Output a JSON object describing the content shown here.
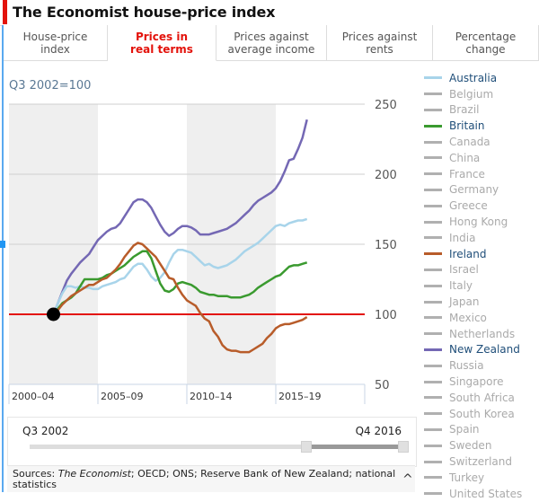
{
  "header": {
    "title": "The Economist house-price index",
    "accent_color": "#e3120b"
  },
  "tabs": [
    {
      "label_line1": "House-price",
      "label_line2": "index",
      "active": false
    },
    {
      "label_line1": "Prices in",
      "label_line2": "real terms",
      "active": true
    },
    {
      "label_line1": "Prices against",
      "label_line2": "average income",
      "active": false
    },
    {
      "label_line1": "Prices against",
      "label_line2": "rents",
      "active": false
    },
    {
      "label_line1": "Percentage",
      "label_line2": "change",
      "active": false
    }
  ],
  "legend": [
    {
      "label": "Australia",
      "active": true,
      "color": "#a8d4ea"
    },
    {
      "label": "Belgium",
      "active": false
    },
    {
      "label": "Brazil",
      "active": false
    },
    {
      "label": "Britain",
      "active": true,
      "color": "#3a9a2f"
    },
    {
      "label": "Canada",
      "active": false
    },
    {
      "label": "China",
      "active": false
    },
    {
      "label": "France",
      "active": false
    },
    {
      "label": "Germany",
      "active": false
    },
    {
      "label": "Greece",
      "active": false
    },
    {
      "label": "Hong Kong",
      "active": false
    },
    {
      "label": "India",
      "active": false
    },
    {
      "label": "Ireland",
      "active": true,
      "color": "#b85c2a"
    },
    {
      "label": "Israel",
      "active": false
    },
    {
      "label": "Italy",
      "active": false
    },
    {
      "label": "Japan",
      "active": false
    },
    {
      "label": "Mexico",
      "active": false
    },
    {
      "label": "Netherlands",
      "active": false
    },
    {
      "label": "New Zealand",
      "active": true,
      "color": "#7468b4"
    },
    {
      "label": "Russia",
      "active": false
    },
    {
      "label": "Singapore",
      "active": false
    },
    {
      "label": "South Africa",
      "active": false
    },
    {
      "label": "South Korea",
      "active": false
    },
    {
      "label": "Spain",
      "active": false
    },
    {
      "label": "Sweden",
      "active": false
    },
    {
      "label": "Switzerland",
      "active": false
    },
    {
      "label": "Turkey",
      "active": false
    },
    {
      "label": "United States",
      "active": false
    }
  ],
  "slider": {
    "start_label": "Q3 2002",
    "end_label": "Q4 2016",
    "range_start_fraction": 0.74,
    "range_end_fraction": 1.0
  },
  "sources": {
    "prefix": "Sources: ",
    "italic": "The Economist",
    "rest": "; OECD; ONS; Reserve Bank of New Zealand; national statistics",
    "toggle_icon": "^"
  },
  "chart_data": {
    "type": "line",
    "title": "The Economist house-price index — Prices in real terms",
    "subtitle": "Q3 2002=100",
    "xlabel": "",
    "ylabel": "",
    "ylim": [
      50,
      250
    ],
    "xlim": [
      2000,
      2020
    ],
    "yticks": [
      50,
      100,
      150,
      200,
      250
    ],
    "yaxis_position": "right",
    "grid": true,
    "period_bands": [
      {
        "label": "2000–04",
        "start": 2000,
        "end": 2005,
        "shaded": true
      },
      {
        "label": "2005–09",
        "start": 2005,
        "end": 2010,
        "shaded": false
      },
      {
        "label": "2010–14",
        "start": 2010,
        "end": 2015,
        "shaded": true
      },
      {
        "label": "2015–19",
        "start": 2015,
        "end": 2020,
        "shaded": false
      }
    ],
    "baseline": {
      "value": 100,
      "color": "#e3120b"
    },
    "base_point": {
      "x": 2002.5,
      "y": 100,
      "label": "Q3 2002"
    },
    "legend_position": "right",
    "series": [
      {
        "name": "New Zealand",
        "color": "#7468b4",
        "x": [
          2002.5,
          2002.75,
          2003,
          2003.25,
          2003.5,
          2003.75,
          2004,
          2004.25,
          2004.5,
          2004.75,
          2005,
          2005.25,
          2005.5,
          2005.75,
          2006,
          2006.25,
          2006.5,
          2006.75,
          2007,
          2007.25,
          2007.5,
          2007.75,
          2008,
          2008.25,
          2008.5,
          2008.75,
          2009,
          2009.25,
          2009.5,
          2009.75,
          2010,
          2010.25,
          2010.5,
          2010.75,
          2011,
          2011.25,
          2011.5,
          2011.75,
          2012,
          2012.25,
          2012.5,
          2012.75,
          2013,
          2013.25,
          2013.5,
          2013.75,
          2014,
          2014.25,
          2014.5,
          2014.75,
          2015,
          2015.25,
          2015.5,
          2015.75,
          2016,
          2016.25,
          2016.5,
          2016.75
        ],
        "values": [
          100,
          108,
          116,
          124,
          129,
          133,
          137,
          140,
          143,
          148,
          153,
          156,
          159,
          161,
          162,
          165,
          170,
          175,
          180,
          182,
          182,
          180,
          176,
          170,
          164,
          159,
          156,
          158,
          161,
          163,
          163,
          162,
          160,
          157,
          157,
          157,
          158,
          159,
          160,
          161,
          163,
          165,
          168,
          171,
          174,
          178,
          181,
          183,
          185,
          187,
          190,
          195,
          202,
          210,
          211,
          218,
          226,
          239
        ]
      },
      {
        "name": "Australia",
        "color": "#a8d4ea",
        "x": [
          2002.5,
          2002.75,
          2003,
          2003.25,
          2003.5,
          2003.75,
          2004,
          2004.25,
          2004.5,
          2004.75,
          2005,
          2005.25,
          2005.5,
          2005.75,
          2006,
          2006.25,
          2006.5,
          2006.75,
          2007,
          2007.25,
          2007.5,
          2007.75,
          2008,
          2008.25,
          2008.5,
          2008.75,
          2009,
          2009.25,
          2009.5,
          2009.75,
          2010,
          2010.25,
          2010.5,
          2010.75,
          2011,
          2011.25,
          2011.5,
          2011.75,
          2012,
          2012.25,
          2012.5,
          2012.75,
          2013,
          2013.25,
          2013.5,
          2013.75,
          2014,
          2014.25,
          2014.5,
          2014.75,
          2015,
          2015.25,
          2015.5,
          2015.75,
          2016,
          2016.25,
          2016.5,
          2016.75
        ],
        "values": [
          100,
          108,
          115,
          120,
          120,
          119,
          120,
          119,
          119,
          118,
          118,
          120,
          121,
          122,
          123,
          125,
          126,
          130,
          134,
          136,
          136,
          132,
          127,
          124,
          126,
          130,
          137,
          143,
          146,
          146,
          145,
          144,
          141,
          138,
          135,
          136,
          134,
          133,
          134,
          135,
          137,
          139,
          142,
          145,
          147,
          149,
          151,
          154,
          157,
          160,
          163,
          164,
          163,
          165,
          166,
          167,
          167,
          168
        ]
      },
      {
        "name": "Britain",
        "color": "#3a9a2f",
        "x": [
          2002.5,
          2002.75,
          2003,
          2003.25,
          2003.5,
          2003.75,
          2004,
          2004.25,
          2004.5,
          2004.75,
          2005,
          2005.25,
          2005.5,
          2005.75,
          2006,
          2006.25,
          2006.5,
          2006.75,
          2007,
          2007.25,
          2007.5,
          2007.75,
          2008,
          2008.25,
          2008.5,
          2008.75,
          2009,
          2009.25,
          2009.5,
          2009.75,
          2010,
          2010.25,
          2010.5,
          2010.75,
          2011,
          2011.25,
          2011.5,
          2011.75,
          2012,
          2012.25,
          2012.5,
          2012.75,
          2013,
          2013.25,
          2013.5,
          2013.75,
          2014,
          2014.25,
          2014.5,
          2014.75,
          2015,
          2015.25,
          2015.5,
          2015.75,
          2016,
          2016.25,
          2016.5,
          2016.75
        ],
        "values": [
          100,
          104,
          108,
          110,
          112,
          115,
          120,
          125,
          125,
          125,
          125,
          126,
          128,
          129,
          131,
          133,
          135,
          138,
          141,
          143,
          145,
          145,
          140,
          131,
          122,
          117,
          116,
          118,
          122,
          123,
          122,
          121,
          119,
          116,
          115,
          114,
          114,
          113,
          113,
          113,
          112,
          112,
          112,
          113,
          114,
          116,
          119,
          121,
          123,
          125,
          127,
          128,
          131,
          134,
          135,
          135,
          136,
          137
        ]
      },
      {
        "name": "Ireland",
        "color": "#b85c2a",
        "x": [
          2002.5,
          2002.75,
          2003,
          2003.25,
          2003.5,
          2003.75,
          2004,
          2004.25,
          2004.5,
          2004.75,
          2005,
          2005.25,
          2005.5,
          2005.75,
          2006,
          2006.25,
          2006.5,
          2006.75,
          2007,
          2007.25,
          2007.5,
          2007.75,
          2008,
          2008.25,
          2008.5,
          2008.75,
          2009,
          2009.25,
          2009.5,
          2009.75,
          2010,
          2010.25,
          2010.5,
          2010.75,
          2011,
          2011.25,
          2011.5,
          2011.75,
          2012,
          2012.25,
          2012.5,
          2012.75,
          2013,
          2013.25,
          2013.5,
          2013.75,
          2014,
          2014.25,
          2014.5,
          2014.75,
          2015,
          2015.25,
          2015.5,
          2015.75,
          2016,
          2016.25,
          2016.5,
          2016.75
        ],
        "values": [
          100,
          103,
          107,
          110,
          113,
          115,
          117,
          119,
          121,
          121,
          123,
          125,
          126,
          129,
          132,
          136,
          141,
          145,
          149,
          151,
          150,
          147,
          144,
          141,
          136,
          131,
          126,
          125,
          119,
          114,
          110,
          108,
          106,
          101,
          97,
          95,
          88,
          84,
          78,
          75,
          74,
          74,
          73,
          73,
          73,
          75,
          77,
          79,
          83,
          86,
          90,
          92,
          93,
          93,
          94,
          95,
          96,
          98
        ]
      }
    ],
    "range_selector": {
      "start": "Q3 2002",
      "end": "Q4 2016"
    }
  }
}
